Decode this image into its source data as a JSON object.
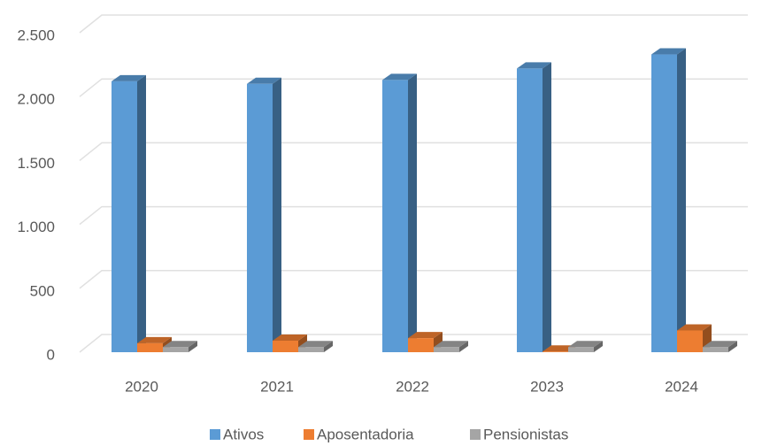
{
  "chart_data": {
    "type": "bar3d",
    "categories": [
      "2020",
      "2021",
      "2022",
      "2023",
      "2024"
    ],
    "series": [
      {
        "name": "Ativos",
        "color": "#5b9bd5",
        "values": [
          2120,
          2100,
          2130,
          2220,
          2330
        ]
      },
      {
        "name": "Aposentadoria",
        "color": "#ed7d31",
        "values": [
          70,
          90,
          110,
          5,
          170
        ]
      },
      {
        "name": "Pensionistas",
        "color": "#a5a5a5",
        "values": [
          40,
          40,
          40,
          40,
          40
        ]
      }
    ],
    "ylim": [
      0,
      2500
    ],
    "yticks": [
      0,
      500,
      {
        "value": 1000,
        "label": "1.000"
      },
      {
        "value": 1500,
        "label": "1.500"
      },
      {
        "value": 2000,
        "label": "2.000"
      },
      {
        "value": 2500,
        "label": "2.500"
      }
    ],
    "grid": true,
    "legend": "bottom"
  }
}
